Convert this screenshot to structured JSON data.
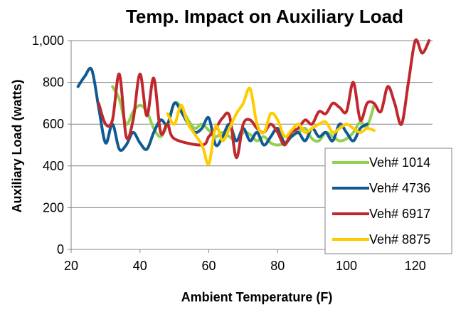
{
  "chart_data": {
    "type": "line",
    "title": "Temp. Impact on Auxiliary Load",
    "xlabel": "Ambient Temperature (F)",
    "ylabel": "Auxiliary Load (watts)",
    "xlim": [
      20,
      125
    ],
    "ylim": [
      0,
      1000
    ],
    "x_ticks": [
      20,
      40,
      60,
      80,
      100,
      120
    ],
    "y_ticks": [
      0,
      200,
      400,
      600,
      800,
      1000
    ],
    "x_tick_labels": [
      "20",
      "40",
      "60",
      "80",
      "100",
      "120"
    ],
    "y_tick_labels": [
      "0",
      "200",
      "400",
      "600",
      "800",
      "1,000"
    ],
    "grid": {
      "horizontal": true,
      "vertical": false
    },
    "legend_position": "bottom-right",
    "series": [
      {
        "name": "Veh# 1014",
        "color": "#92D050",
        "points": [
          [
            32,
            780
          ],
          [
            34,
            720
          ],
          [
            36,
            600
          ],
          [
            38,
            660
          ],
          [
            40,
            690
          ],
          [
            42,
            660
          ],
          [
            44,
            580
          ],
          [
            46,
            540
          ],
          [
            48,
            600
          ],
          [
            50,
            700
          ],
          [
            52,
            680
          ],
          [
            54,
            620
          ],
          [
            56,
            580
          ],
          [
            58,
            600
          ],
          [
            60,
            570
          ],
          [
            62,
            540
          ],
          [
            64,
            560
          ],
          [
            66,
            540
          ],
          [
            68,
            520
          ],
          [
            70,
            560
          ],
          [
            72,
            550
          ],
          [
            74,
            520
          ],
          [
            76,
            540
          ],
          [
            78,
            510
          ],
          [
            80,
            500
          ],
          [
            82,
            510
          ],
          [
            84,
            540
          ],
          [
            86,
            560
          ],
          [
            88,
            580
          ],
          [
            90,
            530
          ],
          [
            92,
            520
          ],
          [
            94,
            560
          ],
          [
            96,
            540
          ],
          [
            98,
            520
          ],
          [
            100,
            530
          ],
          [
            102,
            560
          ],
          [
            104,
            610
          ],
          [
            106,
            590
          ],
          [
            108,
            690
          ]
        ]
      },
      {
        "name": "Veh# 4736",
        "color": "#0F5A94",
        "points": [
          [
            22,
            780
          ],
          [
            24,
            830
          ],
          [
            26,
            860
          ],
          [
            28,
            680
          ],
          [
            30,
            510
          ],
          [
            32,
            600
          ],
          [
            34,
            480
          ],
          [
            36,
            500
          ],
          [
            38,
            560
          ],
          [
            40,
            510
          ],
          [
            42,
            480
          ],
          [
            44,
            560
          ],
          [
            46,
            620
          ],
          [
            48,
            600
          ],
          [
            50,
            700
          ],
          [
            52,
            660
          ],
          [
            54,
            600
          ],
          [
            56,
            560
          ],
          [
            58,
            580
          ],
          [
            60,
            630
          ],
          [
            62,
            500
          ],
          [
            64,
            540
          ],
          [
            66,
            600
          ],
          [
            68,
            520
          ],
          [
            70,
            580
          ],
          [
            72,
            520
          ],
          [
            74,
            560
          ],
          [
            76,
            500
          ],
          [
            78,
            540
          ],
          [
            80,
            580
          ],
          [
            82,
            510
          ],
          [
            84,
            540
          ],
          [
            86,
            560
          ],
          [
            88,
            520
          ],
          [
            90,
            580
          ],
          [
            92,
            540
          ],
          [
            94,
            560
          ],
          [
            96,
            520
          ],
          [
            98,
            600
          ],
          [
            100,
            560
          ],
          [
            102,
            520
          ],
          [
            104,
            580
          ],
          [
            106,
            600
          ]
        ]
      },
      {
        "name": "Veh# 6917",
        "color": "#C0282D",
        "points": [
          [
            28,
            700
          ],
          [
            30,
            600
          ],
          [
            32,
            620
          ],
          [
            34,
            840
          ],
          [
            36,
            540
          ],
          [
            38,
            620
          ],
          [
            40,
            840
          ],
          [
            42,
            640
          ],
          [
            44,
            820
          ],
          [
            46,
            560
          ],
          [
            48,
            600
          ],
          [
            50,
            530
          ],
          [
            58,
            500
          ],
          [
            60,
            540
          ],
          [
            62,
            580
          ],
          [
            64,
            630
          ],
          [
            66,
            640
          ],
          [
            68,
            440
          ],
          [
            70,
            600
          ],
          [
            72,
            620
          ],
          [
            74,
            580
          ],
          [
            76,
            560
          ],
          [
            78,
            600
          ],
          [
            80,
            560
          ],
          [
            82,
            500
          ],
          [
            84,
            560
          ],
          [
            86,
            580
          ],
          [
            88,
            620
          ],
          [
            90,
            600
          ],
          [
            92,
            660
          ],
          [
            94,
            650
          ],
          [
            96,
            700
          ],
          [
            98,
            680
          ],
          [
            100,
            660
          ],
          [
            102,
            800
          ],
          [
            104,
            620
          ],
          [
            106,
            700
          ],
          [
            108,
            700
          ],
          [
            110,
            660
          ],
          [
            112,
            780
          ],
          [
            114,
            700
          ],
          [
            116,
            600
          ],
          [
            118,
            800
          ],
          [
            120,
            1000
          ],
          [
            122,
            940
          ],
          [
            124,
            1000
          ]
        ]
      },
      {
        "name": "Veh# 8875",
        "color": "#FFCC00",
        "points": [
          [
            48,
            650
          ],
          [
            50,
            600
          ],
          [
            52,
            690
          ],
          [
            54,
            600
          ],
          [
            58,
            500
          ],
          [
            60,
            410
          ],
          [
            62,
            590
          ],
          [
            64,
            520
          ],
          [
            66,
            580
          ],
          [
            68,
            650
          ],
          [
            70,
            700
          ],
          [
            72,
            770
          ],
          [
            74,
            600
          ],
          [
            76,
            560
          ],
          [
            78,
            650
          ],
          [
            80,
            620
          ],
          [
            82,
            540
          ],
          [
            84,
            570
          ],
          [
            86,
            600
          ],
          [
            88,
            560
          ],
          [
            90,
            580
          ],
          [
            92,
            600
          ],
          [
            94,
            610
          ],
          [
            96,
            560
          ],
          [
            98,
            580
          ],
          [
            100,
            600
          ],
          [
            102,
            580
          ],
          [
            104,
            560
          ],
          [
            106,
            580
          ],
          [
            108,
            570
          ]
        ]
      }
    ]
  }
}
